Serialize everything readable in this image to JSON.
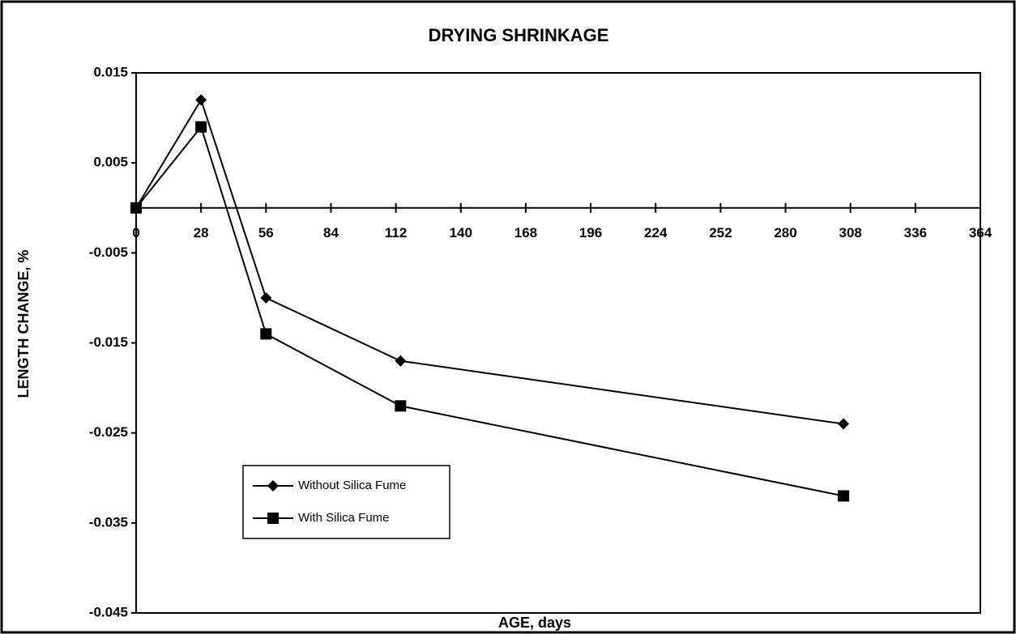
{
  "chart_data": {
    "type": "line",
    "title": "DRYING SHRINKAGE",
    "x_label": "AGE,  days",
    "y_label": "LENGTH CHANGE, %",
    "x": [
      0,
      28,
      56,
      114,
      305
    ],
    "series": [
      {
        "name": "Without Silica Fume",
        "color": "#000000",
        "marker": "diamond",
        "values": [
          0,
          0.012,
          -0.01,
          -0.017,
          -0.024
        ]
      },
      {
        "name": "With Silica Fume",
        "color": "#000000",
        "marker": "square",
        "values": [
          0,
          0.009,
          -0.014,
          -0.022,
          -0.032
        ]
      }
    ],
    "xlim": [
      0,
      364
    ],
    "xticks": [
      0,
      28,
      56,
      84,
      112,
      140,
      168,
      196,
      224,
      252,
      280,
      308,
      336,
      364
    ],
    "ylim": [
      -0.045,
      0.015
    ],
    "yticks": [
      0.015,
      0.005,
      -0.005,
      -0.015,
      -0.025,
      -0.035,
      -0.045
    ],
    "grid": false,
    "legend": "lower-left"
  }
}
